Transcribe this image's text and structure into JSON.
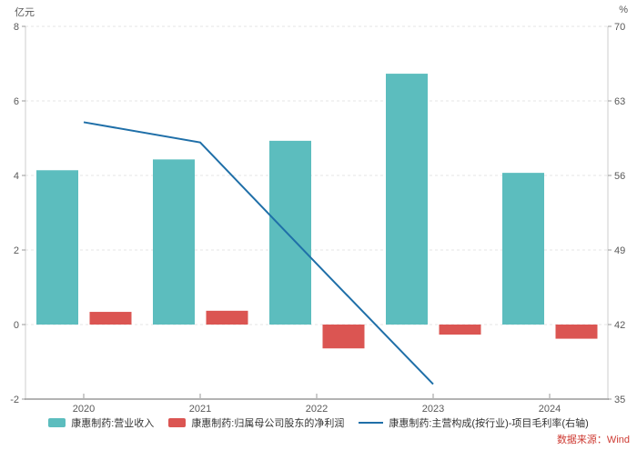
{
  "source": {
    "label": "数据来源：Wind",
    "color": "#CE3B33"
  },
  "axes": {
    "left_unit": "亿元",
    "right_unit": "%"
  },
  "colors": {
    "revenue_bar": "#5CBDBE",
    "profit_bar": "#DB5552",
    "margin_line": "#1F6FA8",
    "axis_text": "#595959",
    "grid_line": "#E4E4E4",
    "axis_line": "#CCCCCC",
    "bottom_axis_line": "#B3B3B3",
    "legend_text": "#333333"
  },
  "chart_data": {
    "type": "bar",
    "categories": [
      "2020",
      "2021",
      "2022",
      "2023",
      "2024"
    ],
    "series": [
      {
        "name": "康惠制药:营业收入",
        "type": "bar",
        "axis": "left",
        "color": "#5CBDBE",
        "values": [
          4.14,
          4.43,
          4.93,
          6.73,
          4.07
        ]
      },
      {
        "name": "康惠制药:归属母公司股东的净利润",
        "type": "bar",
        "axis": "left",
        "color": "#DB5552",
        "values": [
          0.34,
          0.37,
          -0.64,
          -0.27,
          -0.38
        ]
      },
      {
        "name": "康惠制药:主营构成(按行业)-项目毛利率(右轴)",
        "type": "line",
        "axis": "right",
        "color": "#1F6FA8",
        "values": [
          61.0,
          59.1,
          47.7,
          36.4,
          null
        ]
      }
    ],
    "left_axis": {
      "label": "亿元",
      "min": -2,
      "max": 8,
      "ticks": [
        8,
        6,
        4,
        2,
        0,
        -2
      ]
    },
    "right_axis": {
      "label": "%",
      "min": 35,
      "max": 70,
      "ticks": [
        70,
        63,
        56,
        49,
        42,
        35
      ]
    },
    "grid": "dashed-horizontal",
    "legend_position": "bottom"
  }
}
